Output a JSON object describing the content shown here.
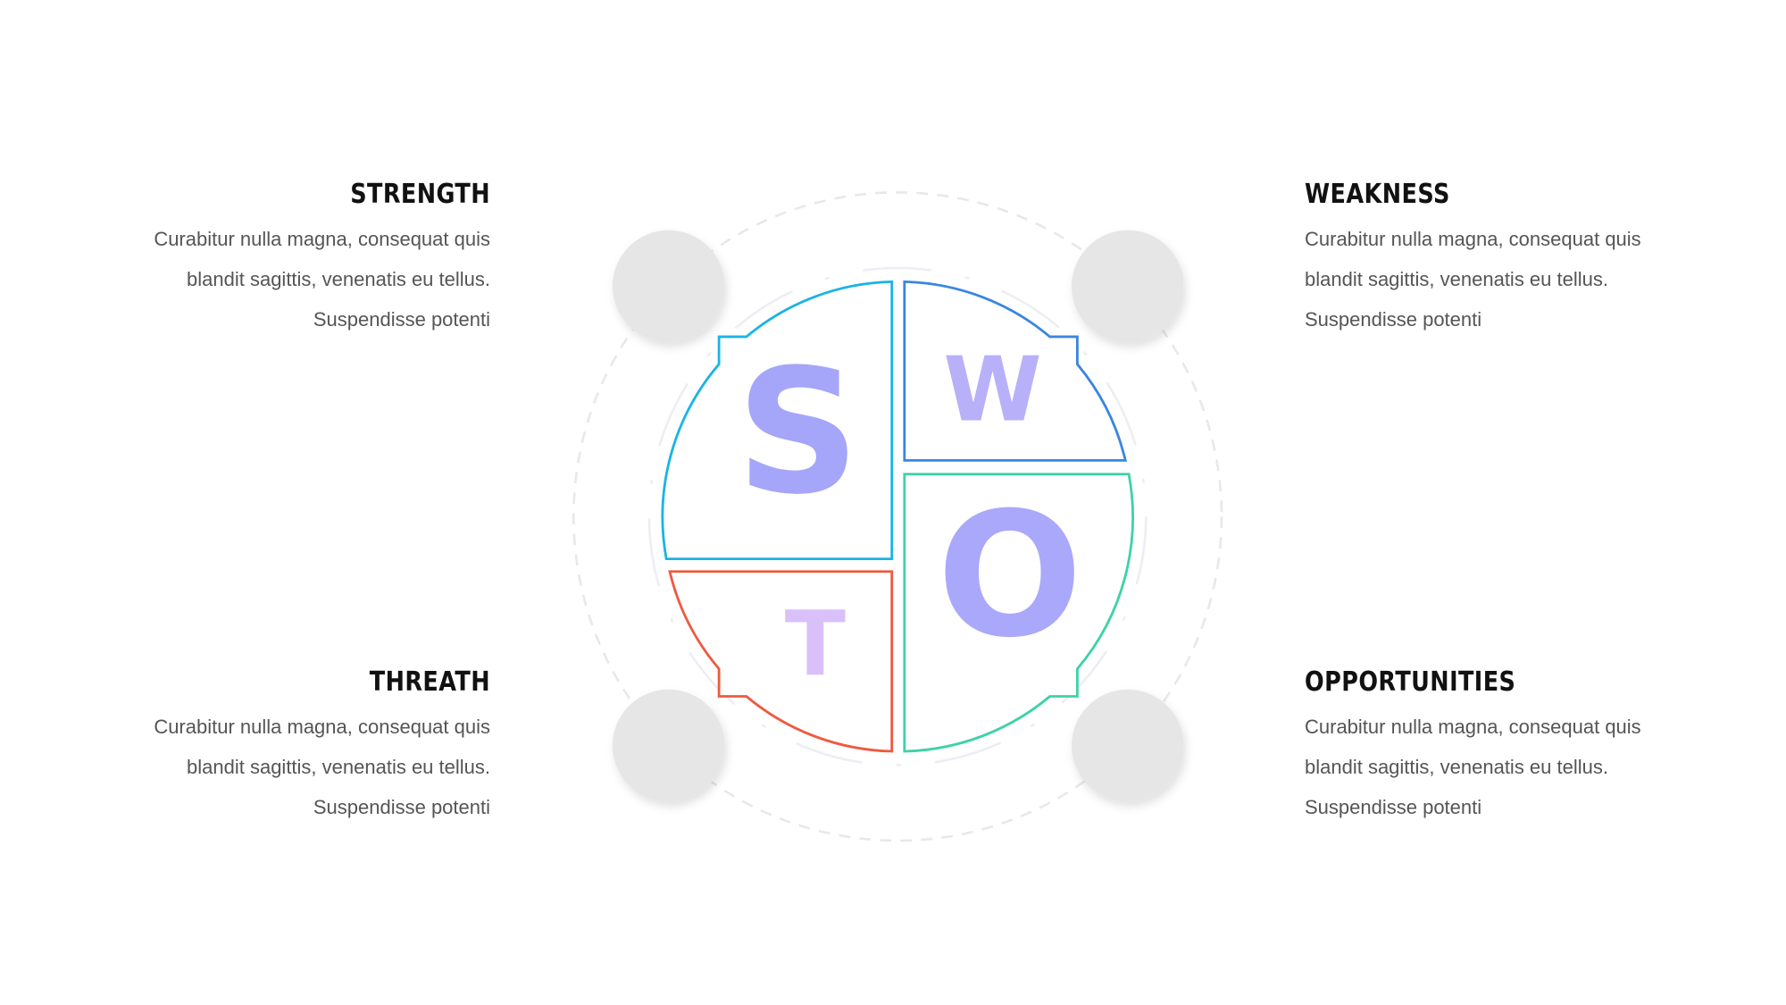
{
  "center": {
    "letters": {
      "s": "S",
      "w": "W",
      "o": "O",
      "t": "T"
    },
    "colors": {
      "strength": "#1ab3e6",
      "weakness": "#3a86e0",
      "opportunities": "#3dd2a8",
      "threat": "#ee5a40",
      "letter_s": "#a5a5fa",
      "letter_w": "#b9b0fa",
      "letter_o": "#aaa8fa",
      "letter_t": "#d9c0f8",
      "placeholder_circle": "#e6e6e6"
    }
  },
  "blocks": {
    "strength": {
      "title": "STRENGTH",
      "lines": [
        "Curabitur nulla magna, consequat quis",
        "blandit sagittis, venenatis eu tellus.",
        "Suspendisse potenti"
      ]
    },
    "weakness": {
      "title": "WEAKNESS",
      "lines": [
        "Curabitur nulla magna, consequat quis",
        "blandit sagittis, venenatis eu tellus.",
        "Suspendisse potenti"
      ]
    },
    "threat": {
      "title": "THREATH",
      "lines": [
        "Curabitur nulla magna, consequat quis",
        "blandit sagittis, venenatis eu tellus.",
        "Suspendisse potenti"
      ]
    },
    "opportunities": {
      "title": "OPPORTUNITIES",
      "lines": [
        "Curabitur nulla magna, consequat quis",
        "blandit sagittis, venenatis eu tellus.",
        "Suspendisse potenti"
      ]
    }
  }
}
